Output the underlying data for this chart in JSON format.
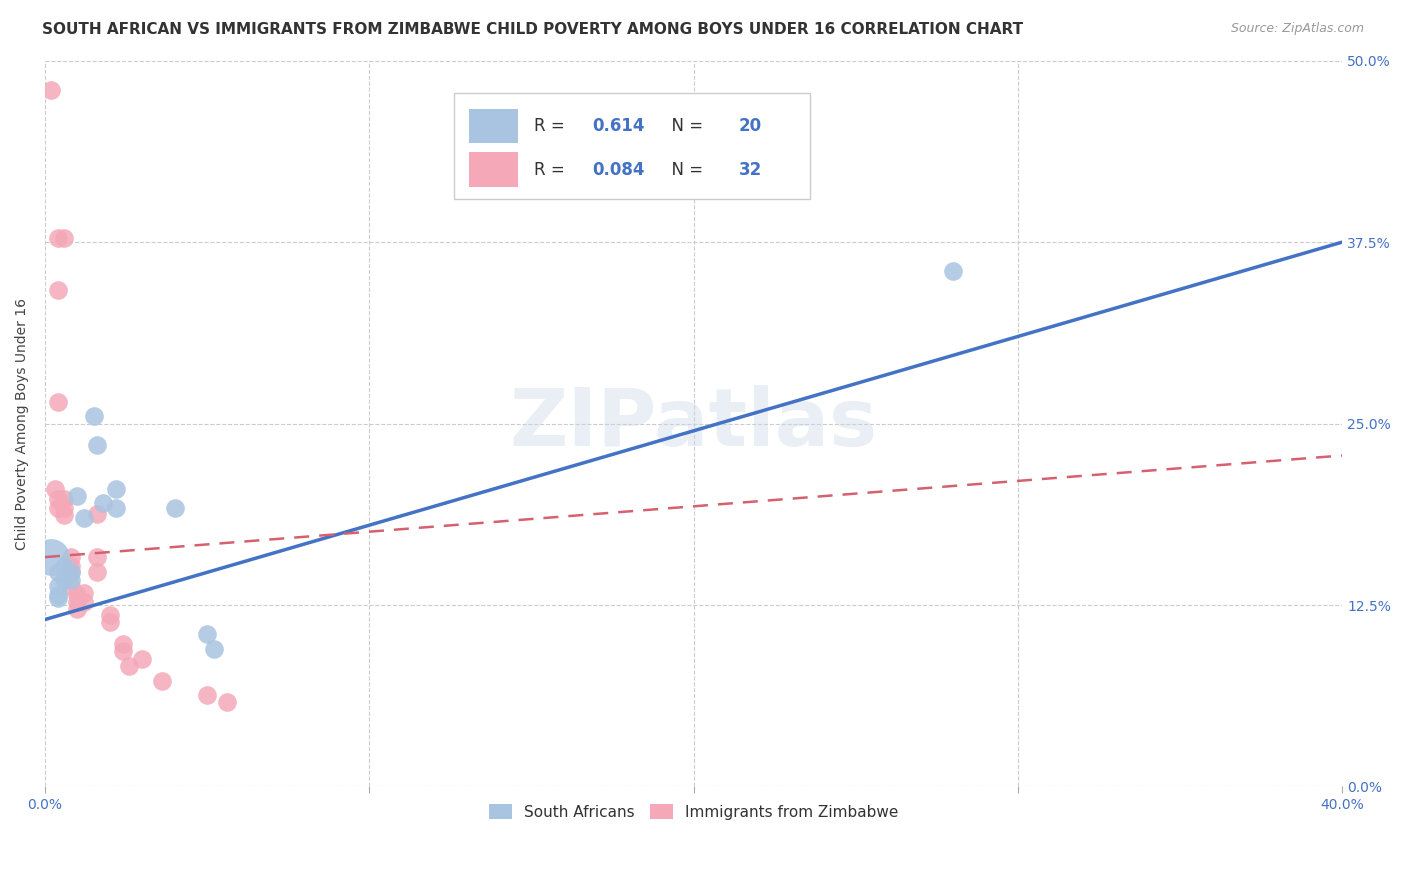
{
  "title": "SOUTH AFRICAN VS IMMIGRANTS FROM ZIMBABWE CHILD POVERTY AMONG BOYS UNDER 16 CORRELATION CHART",
  "source": "Source: ZipAtlas.com",
  "ylabel": "Child Poverty Among Boys Under 16",
  "xlim": [
    0.0,
    0.4
  ],
  "ylim": [
    0.0,
    0.5
  ],
  "watermark": "ZIPatlas",
  "sa_points": [
    [
      0.004,
      0.148
    ],
    [
      0.004,
      0.138
    ],
    [
      0.004,
      0.132
    ],
    [
      0.006,
      0.152
    ],
    [
      0.006,
      0.143
    ],
    [
      0.008,
      0.148
    ],
    [
      0.008,
      0.142
    ],
    [
      0.01,
      0.2
    ],
    [
      0.012,
      0.185
    ],
    [
      0.015,
      0.255
    ],
    [
      0.016,
      0.235
    ],
    [
      0.018,
      0.195
    ],
    [
      0.022,
      0.205
    ],
    [
      0.022,
      0.192
    ],
    [
      0.04,
      0.192
    ],
    [
      0.05,
      0.105
    ],
    [
      0.052,
      0.095
    ],
    [
      0.004,
      0.13
    ],
    [
      0.28,
      0.355
    ]
  ],
  "sa_big_point": [
    0.002,
    0.158
  ],
  "zim_points": [
    [
      0.002,
      0.48
    ],
    [
      0.004,
      0.378
    ],
    [
      0.006,
      0.378
    ],
    [
      0.004,
      0.342
    ],
    [
      0.004,
      0.265
    ],
    [
      0.003,
      0.205
    ],
    [
      0.004,
      0.198
    ],
    [
      0.004,
      0.192
    ],
    [
      0.006,
      0.198
    ],
    [
      0.006,
      0.192
    ],
    [
      0.006,
      0.187
    ],
    [
      0.008,
      0.158
    ],
    [
      0.008,
      0.152
    ],
    [
      0.008,
      0.148
    ],
    [
      0.008,
      0.138
    ],
    [
      0.01,
      0.132
    ],
    [
      0.01,
      0.127
    ],
    [
      0.01,
      0.122
    ],
    [
      0.012,
      0.133
    ],
    [
      0.012,
      0.127
    ],
    [
      0.016,
      0.188
    ],
    [
      0.016,
      0.158
    ],
    [
      0.016,
      0.148
    ],
    [
      0.02,
      0.118
    ],
    [
      0.02,
      0.113
    ],
    [
      0.024,
      0.098
    ],
    [
      0.024,
      0.093
    ],
    [
      0.026,
      0.083
    ],
    [
      0.03,
      0.088
    ],
    [
      0.036,
      0.073
    ],
    [
      0.05,
      0.063
    ],
    [
      0.056,
      0.058
    ]
  ],
  "sa_color": "#a8c4e0",
  "zim_color": "#f4a8b8",
  "sa_line_color": "#4472c4",
  "zim_line_color": "#d46070",
  "sa_R": "0.614",
  "sa_N": "20",
  "zim_R": "0.084",
  "zim_N": "32",
  "sa_trend_x": [
    0.0,
    0.4
  ],
  "sa_trend_y": [
    0.115,
    0.375
  ],
  "zim_trend_x": [
    0.0,
    0.4
  ],
  "zim_trend_y": [
    0.158,
    0.228
  ],
  "legend_sa": "South Africans",
  "legend_zim": "Immigrants from Zimbabwe",
  "background_color": "#ffffff",
  "grid_color": "#cccccc",
  "title_fontsize": 11,
  "label_fontsize": 10,
  "tick_color": "#4472c4",
  "watermark_color": "#c8d8e8",
  "watermark_alpha": 0.4,
  "r_text_color": "#333333",
  "n_text_color": "#4472c4"
}
